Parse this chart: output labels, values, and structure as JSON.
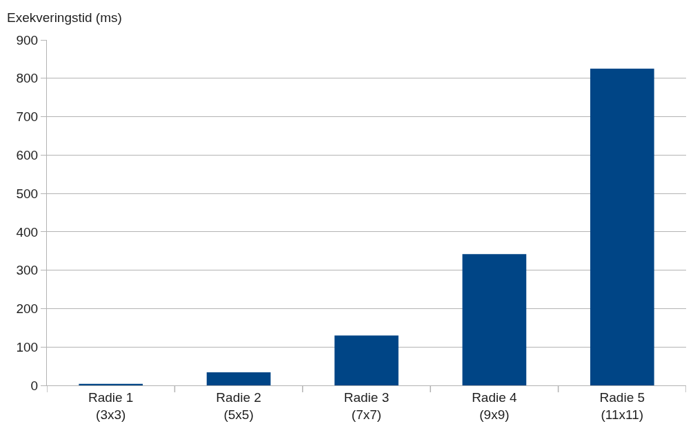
{
  "chart_data": {
    "type": "bar",
    "ylabel": "Exekveringstid (ms)",
    "categories": [
      "Radie 1\n(3x3)",
      "Radie 2\n(5x5)",
      "Radie 3\n(7x7)",
      "Radie 4\n(9x9)",
      "Radie 5\n(11x11)"
    ],
    "values": [
      4,
      34,
      130,
      342,
      825
    ],
    "color": "#004586",
    "ylim": [
      0,
      900
    ],
    "yticks": [
      0,
      100,
      200,
      300,
      400,
      500,
      600,
      700,
      800,
      900
    ],
    "grid": "y"
  }
}
